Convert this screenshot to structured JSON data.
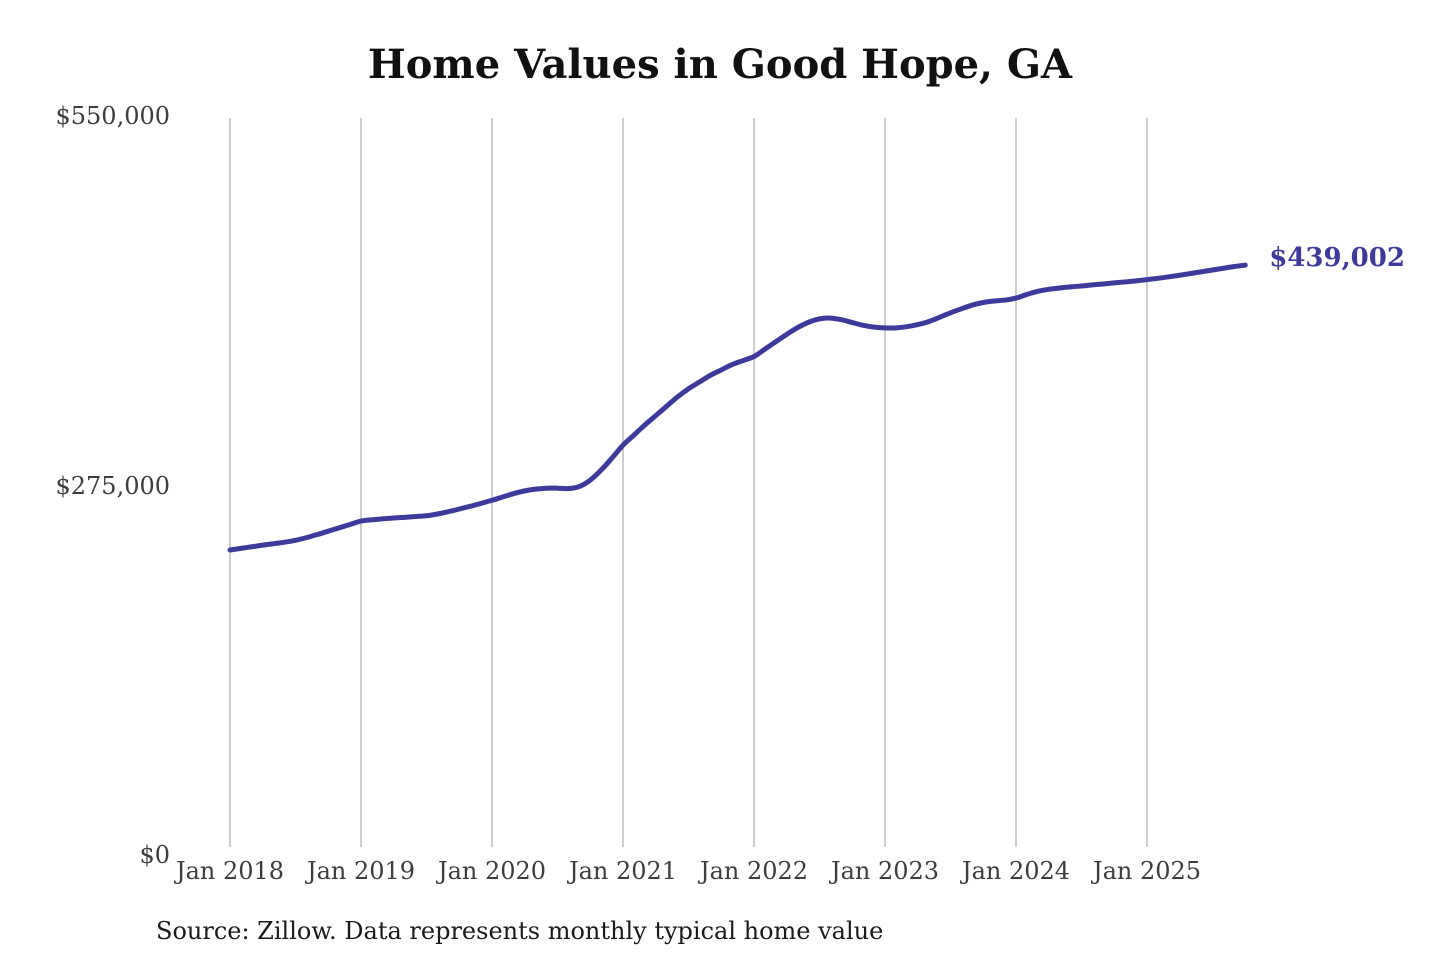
{
  "title": "Home Values in Good Hope, GA",
  "source_note": "Source: Zillow. Data represents monthly typical home value",
  "colors": {
    "line": "#3e3a9c",
    "grid": "#c9c9c9",
    "axis_text": "#3d3d3d",
    "title_text": "#111111",
    "end_label_text": "#3e3a9c",
    "background": "#ffffff"
  },
  "chart_data": {
    "type": "line",
    "title": "Home Values in Good Hope, GA",
    "xlabel": "",
    "ylabel": "",
    "ylim": [
      0,
      550000
    ],
    "grid": "vertical-only",
    "legend": "none",
    "yticks": [
      {
        "value": 0,
        "label": "$0"
      },
      {
        "value": 275000,
        "label": "$275,000"
      },
      {
        "value": 550000,
        "label": "$550,000"
      }
    ],
    "xticks": [
      {
        "month_index": 0,
        "label": "Jan 2018"
      },
      {
        "month_index": 12,
        "label": "Jan 2019"
      },
      {
        "month_index": 24,
        "label": "Jan 2020"
      },
      {
        "month_index": 36,
        "label": "Jan 2021"
      },
      {
        "month_index": 48,
        "label": "Jan 2022"
      },
      {
        "month_index": 60,
        "label": "Jan 2023"
      },
      {
        "month_index": 72,
        "label": "Jan 2024"
      },
      {
        "month_index": 84,
        "label": "Jan 2025"
      }
    ],
    "x_start_month": "2018-01",
    "x_end_month": "2025-10",
    "end_point_label": "$439,002",
    "series": [
      {
        "name": "Monthly typical home value (USD)",
        "values": [
          227000,
          228200,
          229400,
          230600,
          231700,
          232800,
          234200,
          236200,
          238500,
          241000,
          243500,
          246000,
          248500,
          249500,
          250200,
          250800,
          251300,
          251900,
          252500,
          253800,
          255500,
          257500,
          259500,
          261700,
          264000,
          266500,
          269000,
          271000,
          272300,
          273000,
          273000,
          272700,
          274200,
          279000,
          286500,
          295500,
          305000,
          312500,
          320000,
          327000,
          334000,
          341000,
          347000,
          352000,
          357000,
          361000,
          365000,
          368000,
          371000,
          376500,
          382000,
          387500,
          392500,
          396500,
          399000,
          399600,
          398400,
          396300,
          394200,
          392900,
          392300,
          392300,
          393200,
          394800,
          397000,
          400200,
          403500,
          406500,
          409300,
          411200,
          412300,
          413000,
          414500,
          417200,
          419500,
          421000,
          422000,
          422800,
          423500,
          424300,
          425000,
          425800,
          426500,
          427300,
          428200,
          429200,
          430300,
          431500,
          432800,
          434100,
          435400,
          436700,
          438000,
          439002
        ]
      }
    ]
  }
}
